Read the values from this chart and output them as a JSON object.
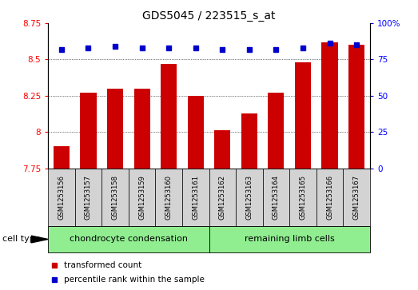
{
  "title": "GDS5045 / 223515_s_at",
  "samples": [
    "GSM1253156",
    "GSM1253157",
    "GSM1253158",
    "GSM1253159",
    "GSM1253160",
    "GSM1253161",
    "GSM1253162",
    "GSM1253163",
    "GSM1253164",
    "GSM1253165",
    "GSM1253166",
    "GSM1253167"
  ],
  "transformed_count": [
    7.9,
    8.27,
    8.3,
    8.3,
    8.47,
    8.25,
    8.01,
    8.13,
    8.27,
    8.48,
    8.62,
    8.6
  ],
  "percentile_rank": [
    82,
    83,
    84,
    83,
    83,
    83,
    82,
    82,
    82,
    83,
    86,
    85
  ],
  "group1_label": "chondrocyte condensation",
  "group2_label": "remaining limb cells",
  "group1_color": "#90EE90",
  "group2_color": "#90EE90",
  "bar_color": "#CC0000",
  "dot_color": "#0000CC",
  "ylim_left": [
    7.75,
    8.75
  ],
  "ylim_right": [
    0,
    100
  ],
  "yticks_left": [
    7.75,
    8.0,
    8.25,
    8.5,
    8.75
  ],
  "ytick_labels_left": [
    "7.75",
    "8",
    "8.25",
    "8.5",
    "8.75"
  ],
  "yticks_right": [
    0,
    25,
    50,
    75,
    100
  ],
  "ytick_labels_right": [
    "0",
    "25",
    "50",
    "75",
    "100%"
  ],
  "grid_values": [
    8.0,
    8.25,
    8.5
  ],
  "title_fontsize": 10,
  "tick_fontsize": 7.5,
  "sample_fontsize": 6,
  "label_fontsize": 8,
  "legend_fontsize": 7.5,
  "celltype_fontsize": 8,
  "n_group1": 6,
  "n_group2": 6,
  "bar_color_legend": "#CC0000",
  "dot_color_legend": "#0000CC",
  "sample_box_color": "#D3D3D3"
}
